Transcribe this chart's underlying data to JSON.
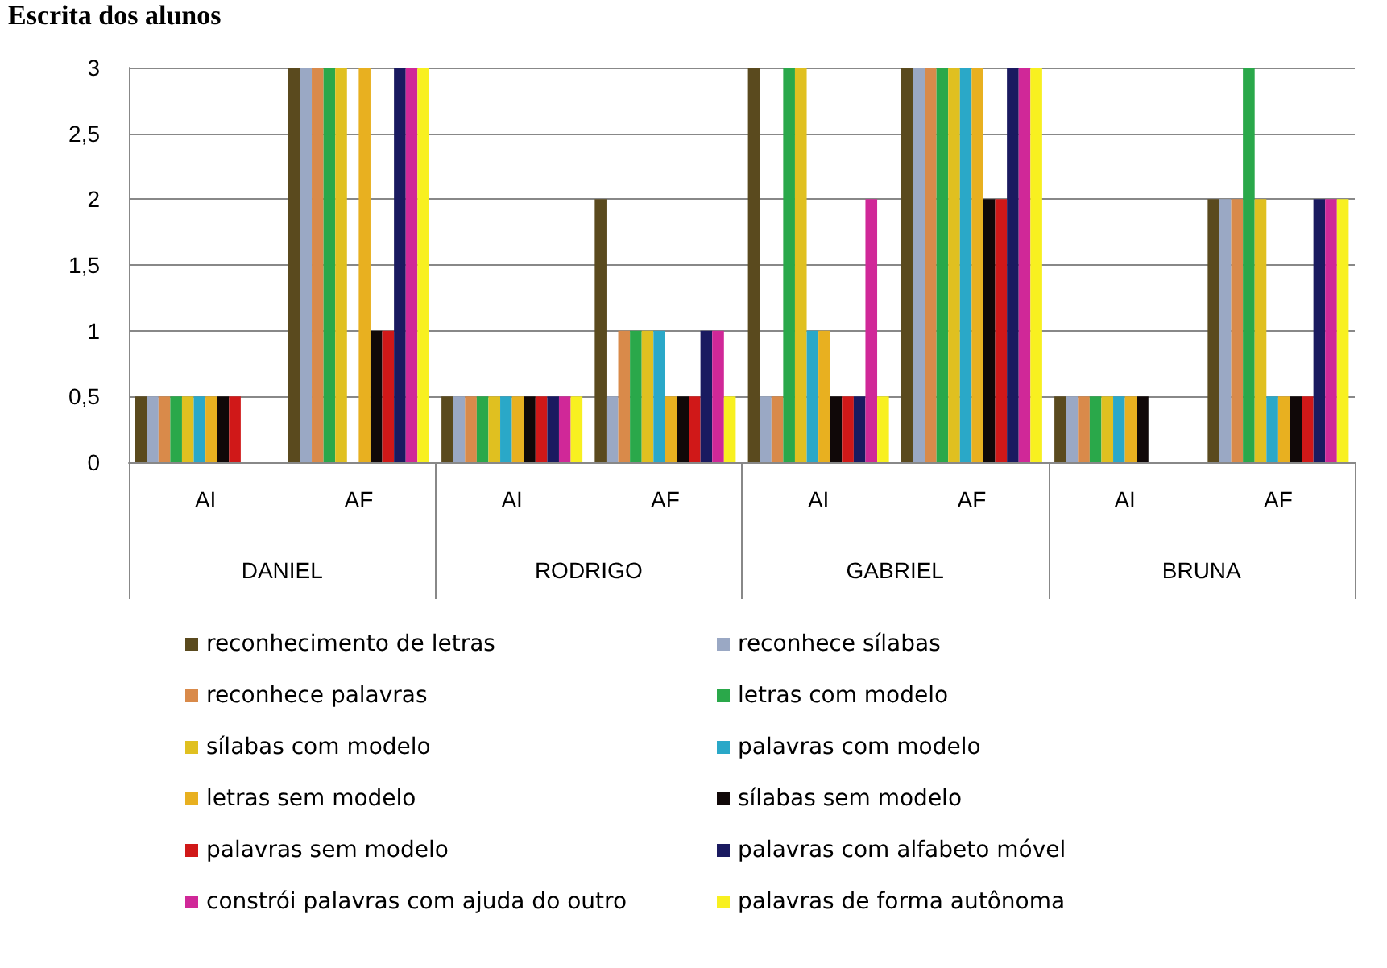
{
  "chart_data": {
    "type": "bar",
    "title": "Escrita dos alunos",
    "categories": [
      "AI",
      "AF",
      "AI",
      "AF",
      "AI",
      "AF",
      "AI",
      "AF"
    ],
    "annotations": [
      "DANIEL",
      "RODRIGO",
      "GABRIEL",
      "BRUNA"
    ],
    "series": [
      {
        "name": "reconhecimento de letras",
        "color": "#5a4a1e",
        "values": [
          0.5,
          3,
          0.5,
          2,
          3,
          3,
          0.5,
          2
        ]
      },
      {
        "name": "reconhece sílabas",
        "color": "#9aa8c4",
        "values": [
          0.5,
          3,
          0.5,
          0.5,
          0.5,
          3,
          0.5,
          2
        ]
      },
      {
        "name": "reconhece palavras",
        "color": "#d98a4a",
        "values": [
          0.5,
          3,
          0.5,
          1,
          0.5,
          3,
          0.5,
          2
        ]
      },
      {
        "name": "letras com modelo",
        "color": "#2aa84a",
        "values": [
          0.5,
          3,
          0.5,
          1,
          3,
          3,
          0.5,
          3
        ]
      },
      {
        "name": "sílabas com modelo",
        "color": "#e0c020",
        "values": [
          0.5,
          3,
          0.5,
          1,
          3,
          3,
          0.5,
          2
        ]
      },
      {
        "name": "palavras com modelo",
        "color": "#2aa8c8",
        "values": [
          0.5,
          0,
          0.5,
          1,
          1,
          3,
          0.5,
          0.5
        ]
      },
      {
        "name": "letras sem modelo",
        "color": "#e8b020",
        "values": [
          0.5,
          3,
          0.5,
          0.5,
          1,
          3,
          0.5,
          0.5
        ]
      },
      {
        "name": "sílabas sem modelo",
        "color": "#100808",
        "values": [
          0.5,
          1,
          0.5,
          0.5,
          0.5,
          2,
          0.5,
          0.5
        ]
      },
      {
        "name": "palavras sem modelo",
        "color": "#d01818",
        "values": [
          0.5,
          1,
          0.5,
          0.5,
          0.5,
          2,
          0,
          0.5
        ]
      },
      {
        "name": "palavras com alfabeto móvel",
        "color": "#1a1a60",
        "values": [
          0,
          3,
          0.5,
          1,
          0.5,
          3,
          0,
          2
        ]
      },
      {
        "name": "constrói palavras com ajuda do outro",
        "color": "#d02898",
        "values": [
          0,
          3,
          0.5,
          1,
          2,
          3,
          0,
          2
        ]
      },
      {
        "name": "palavras de forma autônoma",
        "color": "#f8f020",
        "values": [
          0,
          3,
          0.5,
          0.5,
          0.5,
          3,
          0,
          2
        ]
      }
    ],
    "ylim": [
      0,
      3
    ],
    "yticks": [
      0,
      {
        "value": 0.5,
        "label": "0,5"
      },
      1,
      {
        "value": 1.5,
        "label": "1,5"
      },
      2,
      {
        "value": 2.5,
        "label": "2,5"
      },
      3
    ],
    "grid": "y",
    "legend": "bottom"
  }
}
